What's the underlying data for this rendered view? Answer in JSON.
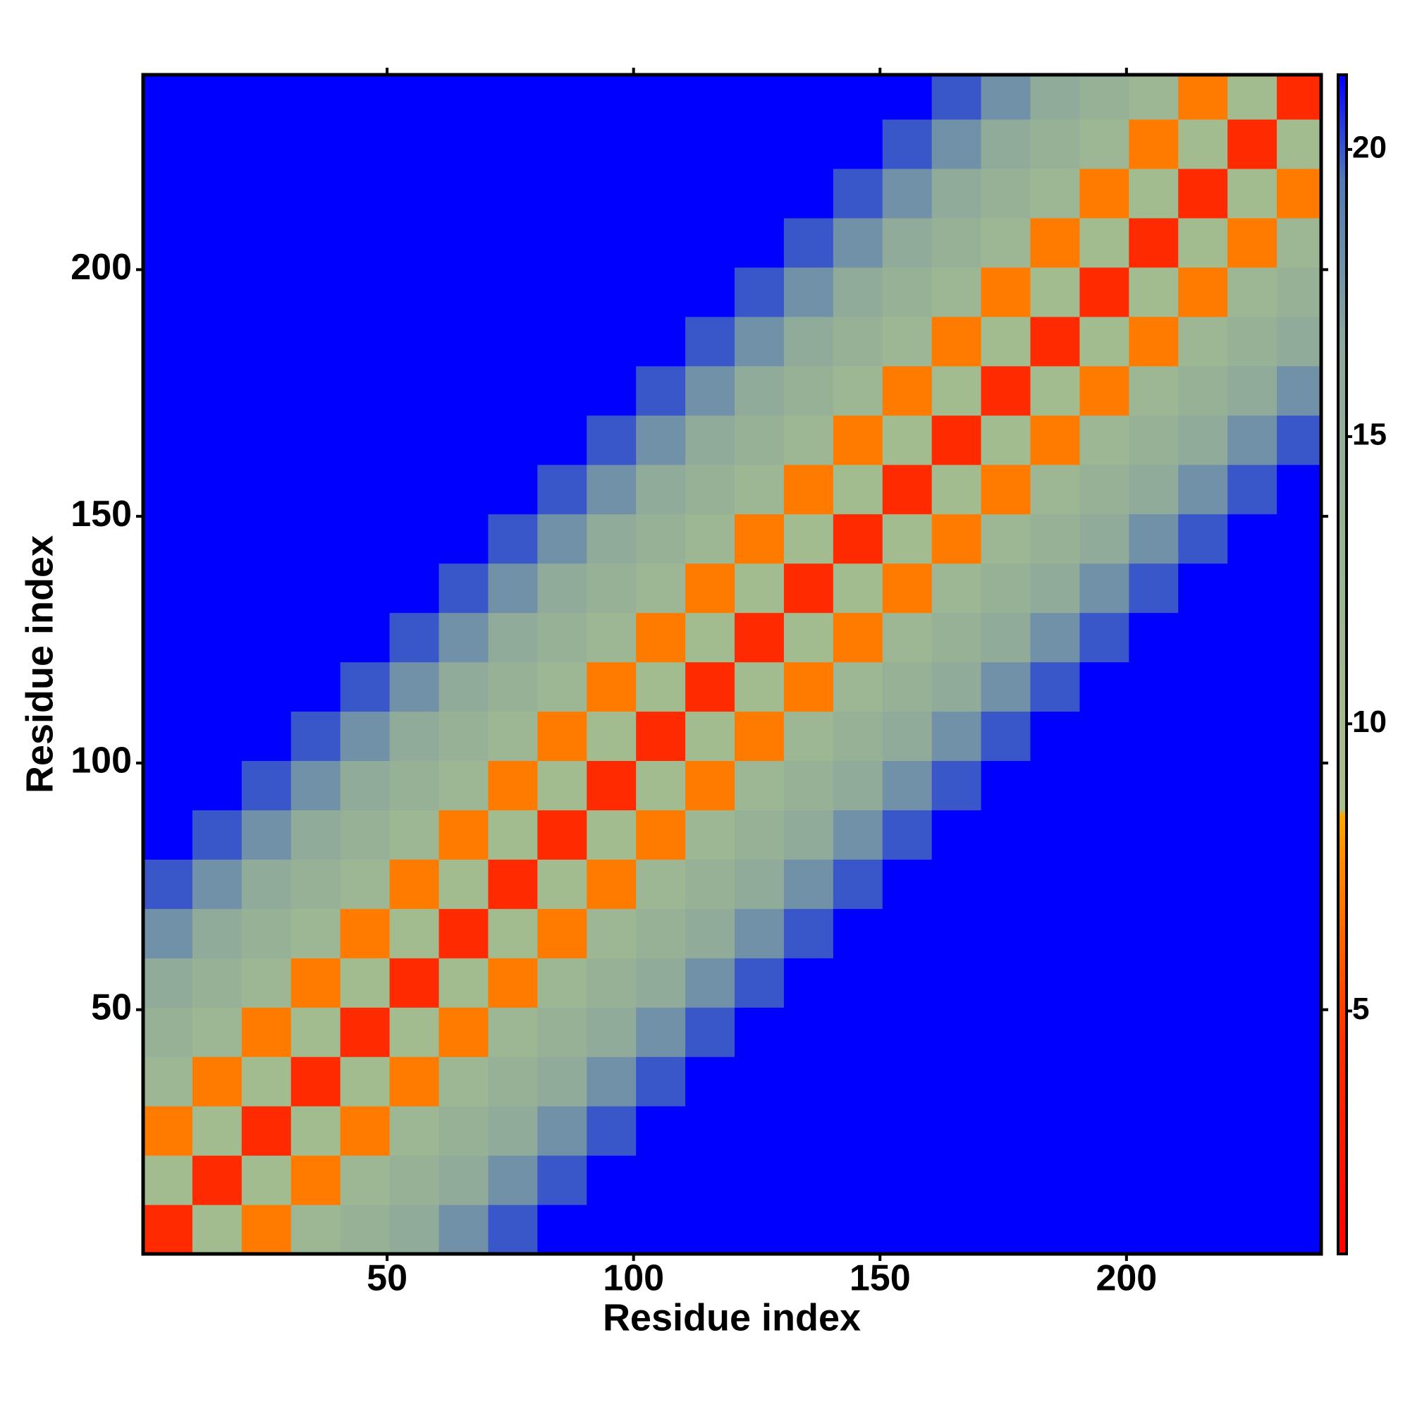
{
  "chart_data": {
    "type": "heatmap",
    "x_label": "Residue index",
    "y_label": "Residue index",
    "xlim": [
      0.5,
      239.5
    ],
    "ylim": [
      0.5,
      239.5
    ],
    "xticks": [
      50,
      100,
      150,
      200
    ],
    "yticks": [
      50,
      100,
      150,
      200
    ],
    "xbins": [
      0.5,
      10.5,
      20.5,
      30.5,
      40.5,
      50.5,
      60.5,
      70.5,
      80.5,
      90.5,
      100.5,
      110.5,
      120.5,
      130.5,
      140.5,
      150.5,
      160.5,
      170.5,
      180.5,
      190.5,
      200.5,
      210.5,
      220.5,
      230.5,
      240.5
    ],
    "ybins": [
      0.5,
      10.5,
      20.5,
      30.5,
      40.5,
      50.5,
      60.5,
      70.5,
      80.5,
      90.5,
      100.5,
      110.5,
      120.5,
      130.5,
      140.5,
      150.5,
      160.5,
      170.5,
      180.5,
      190.5,
      200.5,
      210.5,
      220.5,
      230.5,
      240.5
    ],
    "z": [
      [
        4,
        10,
        7,
        12,
        14,
        16,
        18,
        20,
        22,
        30,
        30,
        30,
        30,
        30,
        30,
        30,
        30,
        30,
        30,
        30,
        30,
        30,
        30,
        30
      ],
      [
        10,
        4,
        10,
        7,
        12,
        14,
        16,
        18,
        20,
        22,
        30,
        30,
        30,
        30,
        30,
        30,
        30,
        30,
        30,
        30,
        30,
        30,
        30,
        30
      ],
      [
        7,
        10,
        4,
        10,
        7,
        12,
        14,
        16,
        18,
        20,
        22,
        30,
        30,
        30,
        30,
        30,
        30,
        30,
        30,
        30,
        30,
        30,
        30,
        30
      ],
      [
        12,
        7,
        10,
        4,
        10,
        7,
        12,
        14,
        16,
        18,
        20,
        22,
        30,
        30,
        30,
        30,
        30,
        30,
        30,
        30,
        30,
        30,
        30,
        30
      ],
      [
        14,
        12,
        7,
        10,
        4,
        10,
        7,
        12,
        14,
        16,
        18,
        20,
        22,
        30,
        30,
        30,
        30,
        30,
        30,
        30,
        30,
        30,
        30,
        30
      ],
      [
        16,
        14,
        12,
        7,
        10,
        4,
        10,
        7,
        12,
        14,
        16,
        18,
        20,
        22,
        30,
        30,
        30,
        30,
        30,
        30,
        30,
        30,
        30,
        30
      ],
      [
        18,
        16,
        14,
        12,
        7,
        10,
        4,
        10,
        7,
        12,
        14,
        16,
        18,
        20,
        22,
        30,
        30,
        30,
        30,
        30,
        30,
        30,
        30,
        30
      ],
      [
        20,
        18,
        16,
        14,
        12,
        7,
        10,
        4,
        10,
        7,
        12,
        14,
        16,
        18,
        20,
        22,
        30,
        30,
        30,
        30,
        30,
        30,
        30,
        30
      ],
      [
        22,
        20,
        18,
        16,
        14,
        12,
        7,
        10,
        4,
        10,
        7,
        12,
        14,
        16,
        18,
        20,
        22,
        30,
        30,
        30,
        30,
        30,
        30,
        30
      ],
      [
        30,
        22,
        20,
        18,
        16,
        14,
        12,
        7,
        10,
        4,
        10,
        7,
        12,
        14,
        16,
        18,
        20,
        22,
        30,
        30,
        30,
        30,
        30,
        30
      ],
      [
        30,
        30,
        22,
        20,
        18,
        16,
        14,
        12,
        7,
        10,
        4,
        10,
        7,
        12,
        14,
        16,
        18,
        20,
        22,
        30,
        30,
        30,
        30,
        30
      ],
      [
        30,
        30,
        30,
        22,
        20,
        18,
        16,
        14,
        12,
        7,
        10,
        4,
        10,
        7,
        12,
        14,
        16,
        18,
        20,
        22,
        30,
        30,
        30,
        30
      ],
      [
        30,
        30,
        30,
        30,
        22,
        20,
        18,
        16,
        14,
        12,
        7,
        10,
        4,
        10,
        7,
        12,
        14,
        16,
        18,
        20,
        22,
        30,
        30,
        30
      ],
      [
        30,
        30,
        30,
        30,
        30,
        22,
        20,
        18,
        16,
        14,
        12,
        7,
        10,
        4,
        10,
        7,
        12,
        14,
        16,
        18,
        20,
        22,
        30,
        30
      ],
      [
        30,
        30,
        30,
        30,
        30,
        30,
        22,
        20,
        18,
        16,
        14,
        12,
        7,
        10,
        4,
        10,
        7,
        12,
        14,
        16,
        18,
        20,
        22,
        30
      ],
      [
        30,
        30,
        30,
        30,
        30,
        30,
        30,
        22,
        20,
        18,
        16,
        14,
        12,
        7,
        10,
        4,
        10,
        7,
        12,
        14,
        16,
        18,
        20,
        22
      ],
      [
        30,
        30,
        30,
        30,
        30,
        30,
        30,
        30,
        22,
        20,
        18,
        16,
        14,
        12,
        7,
        10,
        4,
        10,
        7,
        12,
        14,
        16,
        18,
        20
      ],
      [
        30,
        30,
        30,
        30,
        30,
        30,
        30,
        30,
        30,
        22,
        20,
        18,
        16,
        14,
        12,
        7,
        10,
        4,
        10,
        7,
        12,
        14,
        16,
        18
      ],
      [
        30,
        30,
        30,
        30,
        30,
        30,
        30,
        30,
        30,
        30,
        22,
        20,
        18,
        16,
        14,
        12,
        7,
        10,
        4,
        10,
        7,
        12,
        14,
        16
      ],
      [
        30,
        30,
        30,
        30,
        30,
        30,
        30,
        30,
        30,
        30,
        30,
        22,
        20,
        18,
        16,
        14,
        12,
        7,
        10,
        4,
        10,
        7,
        12,
        14
      ],
      [
        30,
        30,
        30,
        30,
        30,
        30,
        30,
        30,
        30,
        30,
        30,
        30,
        22,
        20,
        18,
        16,
        14,
        12,
        7,
        10,
        4,
        10,
        7,
        12
      ],
      [
        30,
        30,
        30,
        30,
        30,
        30,
        30,
        30,
        30,
        30,
        30,
        30,
        30,
        22,
        20,
        18,
        16,
        14,
        12,
        7,
        10,
        4,
        10,
        7
      ],
      [
        30,
        30,
        30,
        30,
        30,
        30,
        30,
        30,
        30,
        30,
        30,
        30,
        30,
        30,
        22,
        20,
        18,
        16,
        14,
        12,
        7,
        10,
        4,
        10
      ],
      [
        30,
        30,
        30,
        30,
        30,
        30,
        30,
        30,
        30,
        30,
        30,
        30,
        30,
        30,
        30,
        22,
        20,
        18,
        16,
        14,
        12,
        7,
        10,
        4
      ]
    ],
    "clim": [
      0.77,
      21.3
    ],
    "cticks": [
      5,
      10,
      15,
      20
    ],
    "colorscale": [
      [
        0.77,
        "#ff0000"
      ],
      [
        4.5,
        "#ff3000"
      ],
      [
        8.4,
        "#ffa500"
      ],
      [
        8.5,
        "#a8c08c"
      ],
      [
        16.5,
        "#8faa9c"
      ],
      [
        19.5,
        "#5078b4"
      ],
      [
        21.3,
        "#0000ff"
      ]
    ]
  }
}
